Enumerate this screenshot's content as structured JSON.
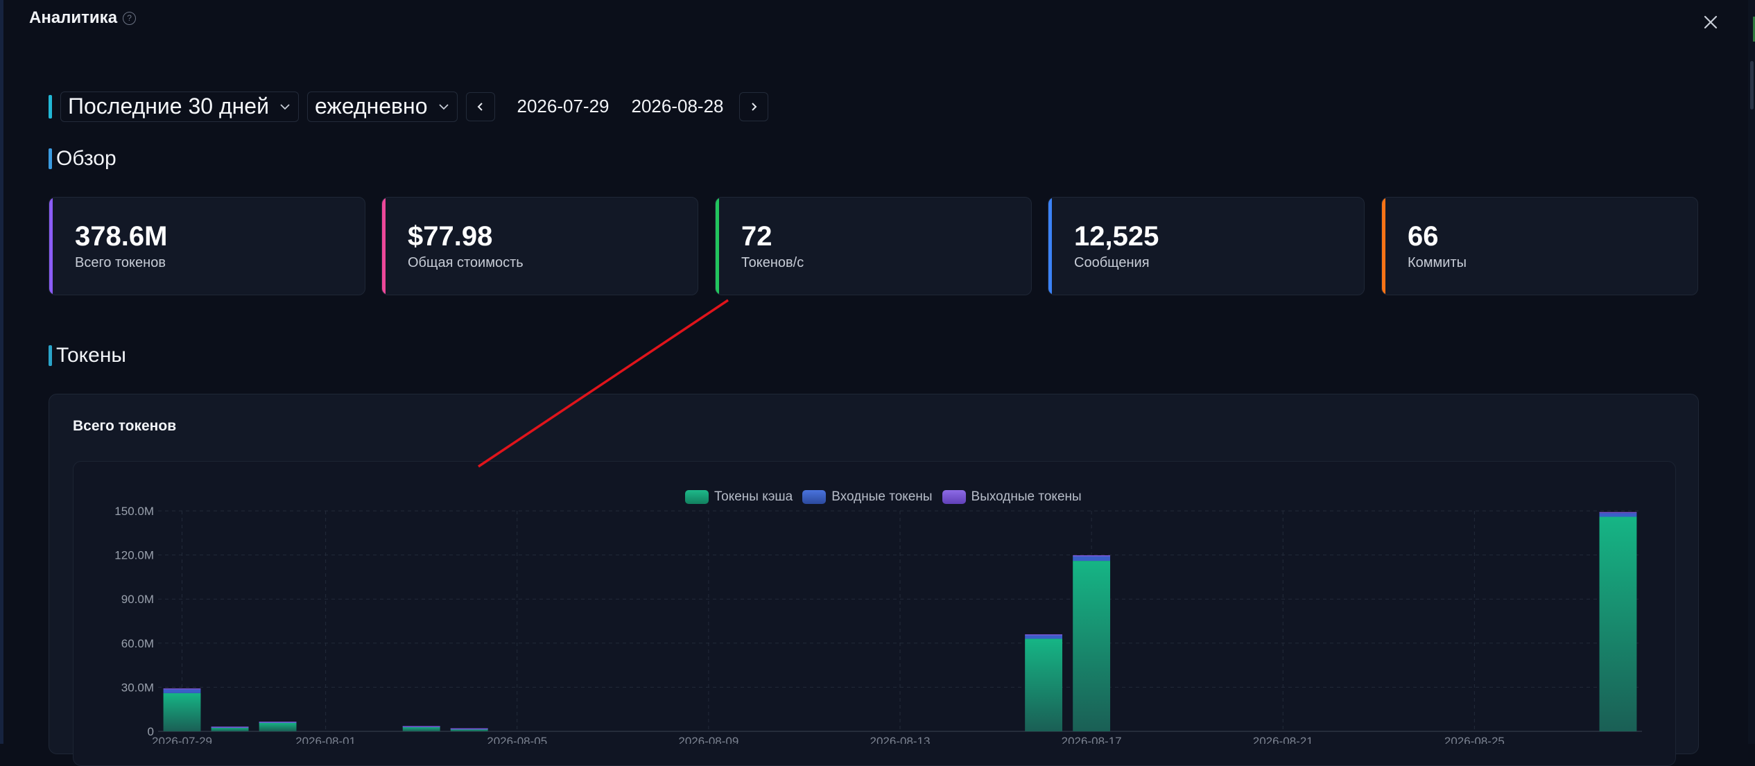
{
  "header": {
    "title": "Аналитика",
    "help_icon": "?"
  },
  "controls": {
    "period": "Последние 30 дней",
    "granularity": "ежедневно",
    "date_from": "2026-07-29",
    "date_to": "2026-08-28"
  },
  "overview": {
    "section_title": "Обзор",
    "cards": [
      {
        "value": "378.6M",
        "label": "Всего токенов",
        "color": "#8b5cf6"
      },
      {
        "value": "$77.98",
        "label": "Общая стоимость",
        "color": "#ec4899"
      },
      {
        "value": "72",
        "label": "Токенов/с",
        "color": "#22c55e"
      },
      {
        "value": "12,525",
        "label": "Сообщения",
        "color": "#3b82f6"
      },
      {
        "value": "66",
        "label": "Коммиты",
        "color": "#f97316"
      }
    ]
  },
  "tokens": {
    "section_title": "Токены",
    "chart_title": "Всего токенов"
  },
  "chart_data": {
    "type": "bar",
    "stacked": true,
    "legend_position": "top-center",
    "ylim": [
      0,
      150000000
    ],
    "y_ticks": [
      "0",
      "30.0M",
      "60.0M",
      "90.0M",
      "120.0M",
      "150.0M"
    ],
    "x_tick_labels": [
      "2026-07-29",
      "2026-08-01",
      "2026-08-05",
      "2026-08-09",
      "2026-08-13",
      "2026-08-17",
      "2026-08-21",
      "2026-08-25"
    ],
    "categories": [
      "2026-07-29",
      "2026-07-30",
      "2026-07-31",
      "2026-08-01",
      "2026-08-02",
      "2026-08-03",
      "2026-08-04",
      "2026-08-05",
      "2026-08-06",
      "2026-08-07",
      "2026-08-08",
      "2026-08-09",
      "2026-08-10",
      "2026-08-11",
      "2026-08-12",
      "2026-08-13",
      "2026-08-14",
      "2026-08-15",
      "2026-08-16",
      "2026-08-17",
      "2026-08-18",
      "2026-08-19",
      "2026-08-20",
      "2026-08-21",
      "2026-08-22",
      "2026-08-23",
      "2026-08-24",
      "2026-08-25",
      "2026-08-26",
      "2026-08-27",
      "2026-08-28"
    ],
    "series": [
      {
        "name": "Токены кэша",
        "color": "#12a97c",
        "values": [
          26000000,
          2800000,
          6000000,
          0,
          0,
          3200000,
          1800000,
          0,
          0,
          0,
          0,
          0,
          0,
          0,
          0,
          0,
          0,
          0,
          63000000,
          116000000,
          0,
          0,
          0,
          0,
          0,
          0,
          0,
          0,
          0,
          0,
          146000000
        ]
      },
      {
        "name": "Входные токены",
        "color": "#3a5fc7",
        "values": [
          2500000,
          300000,
          500000,
          0,
          0,
          300000,
          200000,
          0,
          0,
          0,
          0,
          0,
          0,
          0,
          0,
          0,
          0,
          0,
          2500000,
          3200000,
          0,
          0,
          0,
          0,
          0,
          0,
          0,
          0,
          0,
          0,
          2500000
        ]
      },
      {
        "name": "Выходные токены",
        "color": "#7a56d6",
        "values": [
          700000,
          100000,
          100000,
          0,
          0,
          100000,
          50000,
          0,
          0,
          0,
          0,
          0,
          0,
          0,
          0,
          0,
          0,
          0,
          500000,
          600000,
          0,
          0,
          0,
          0,
          0,
          0,
          0,
          0,
          0,
          0,
          700000
        ]
      }
    ]
  }
}
